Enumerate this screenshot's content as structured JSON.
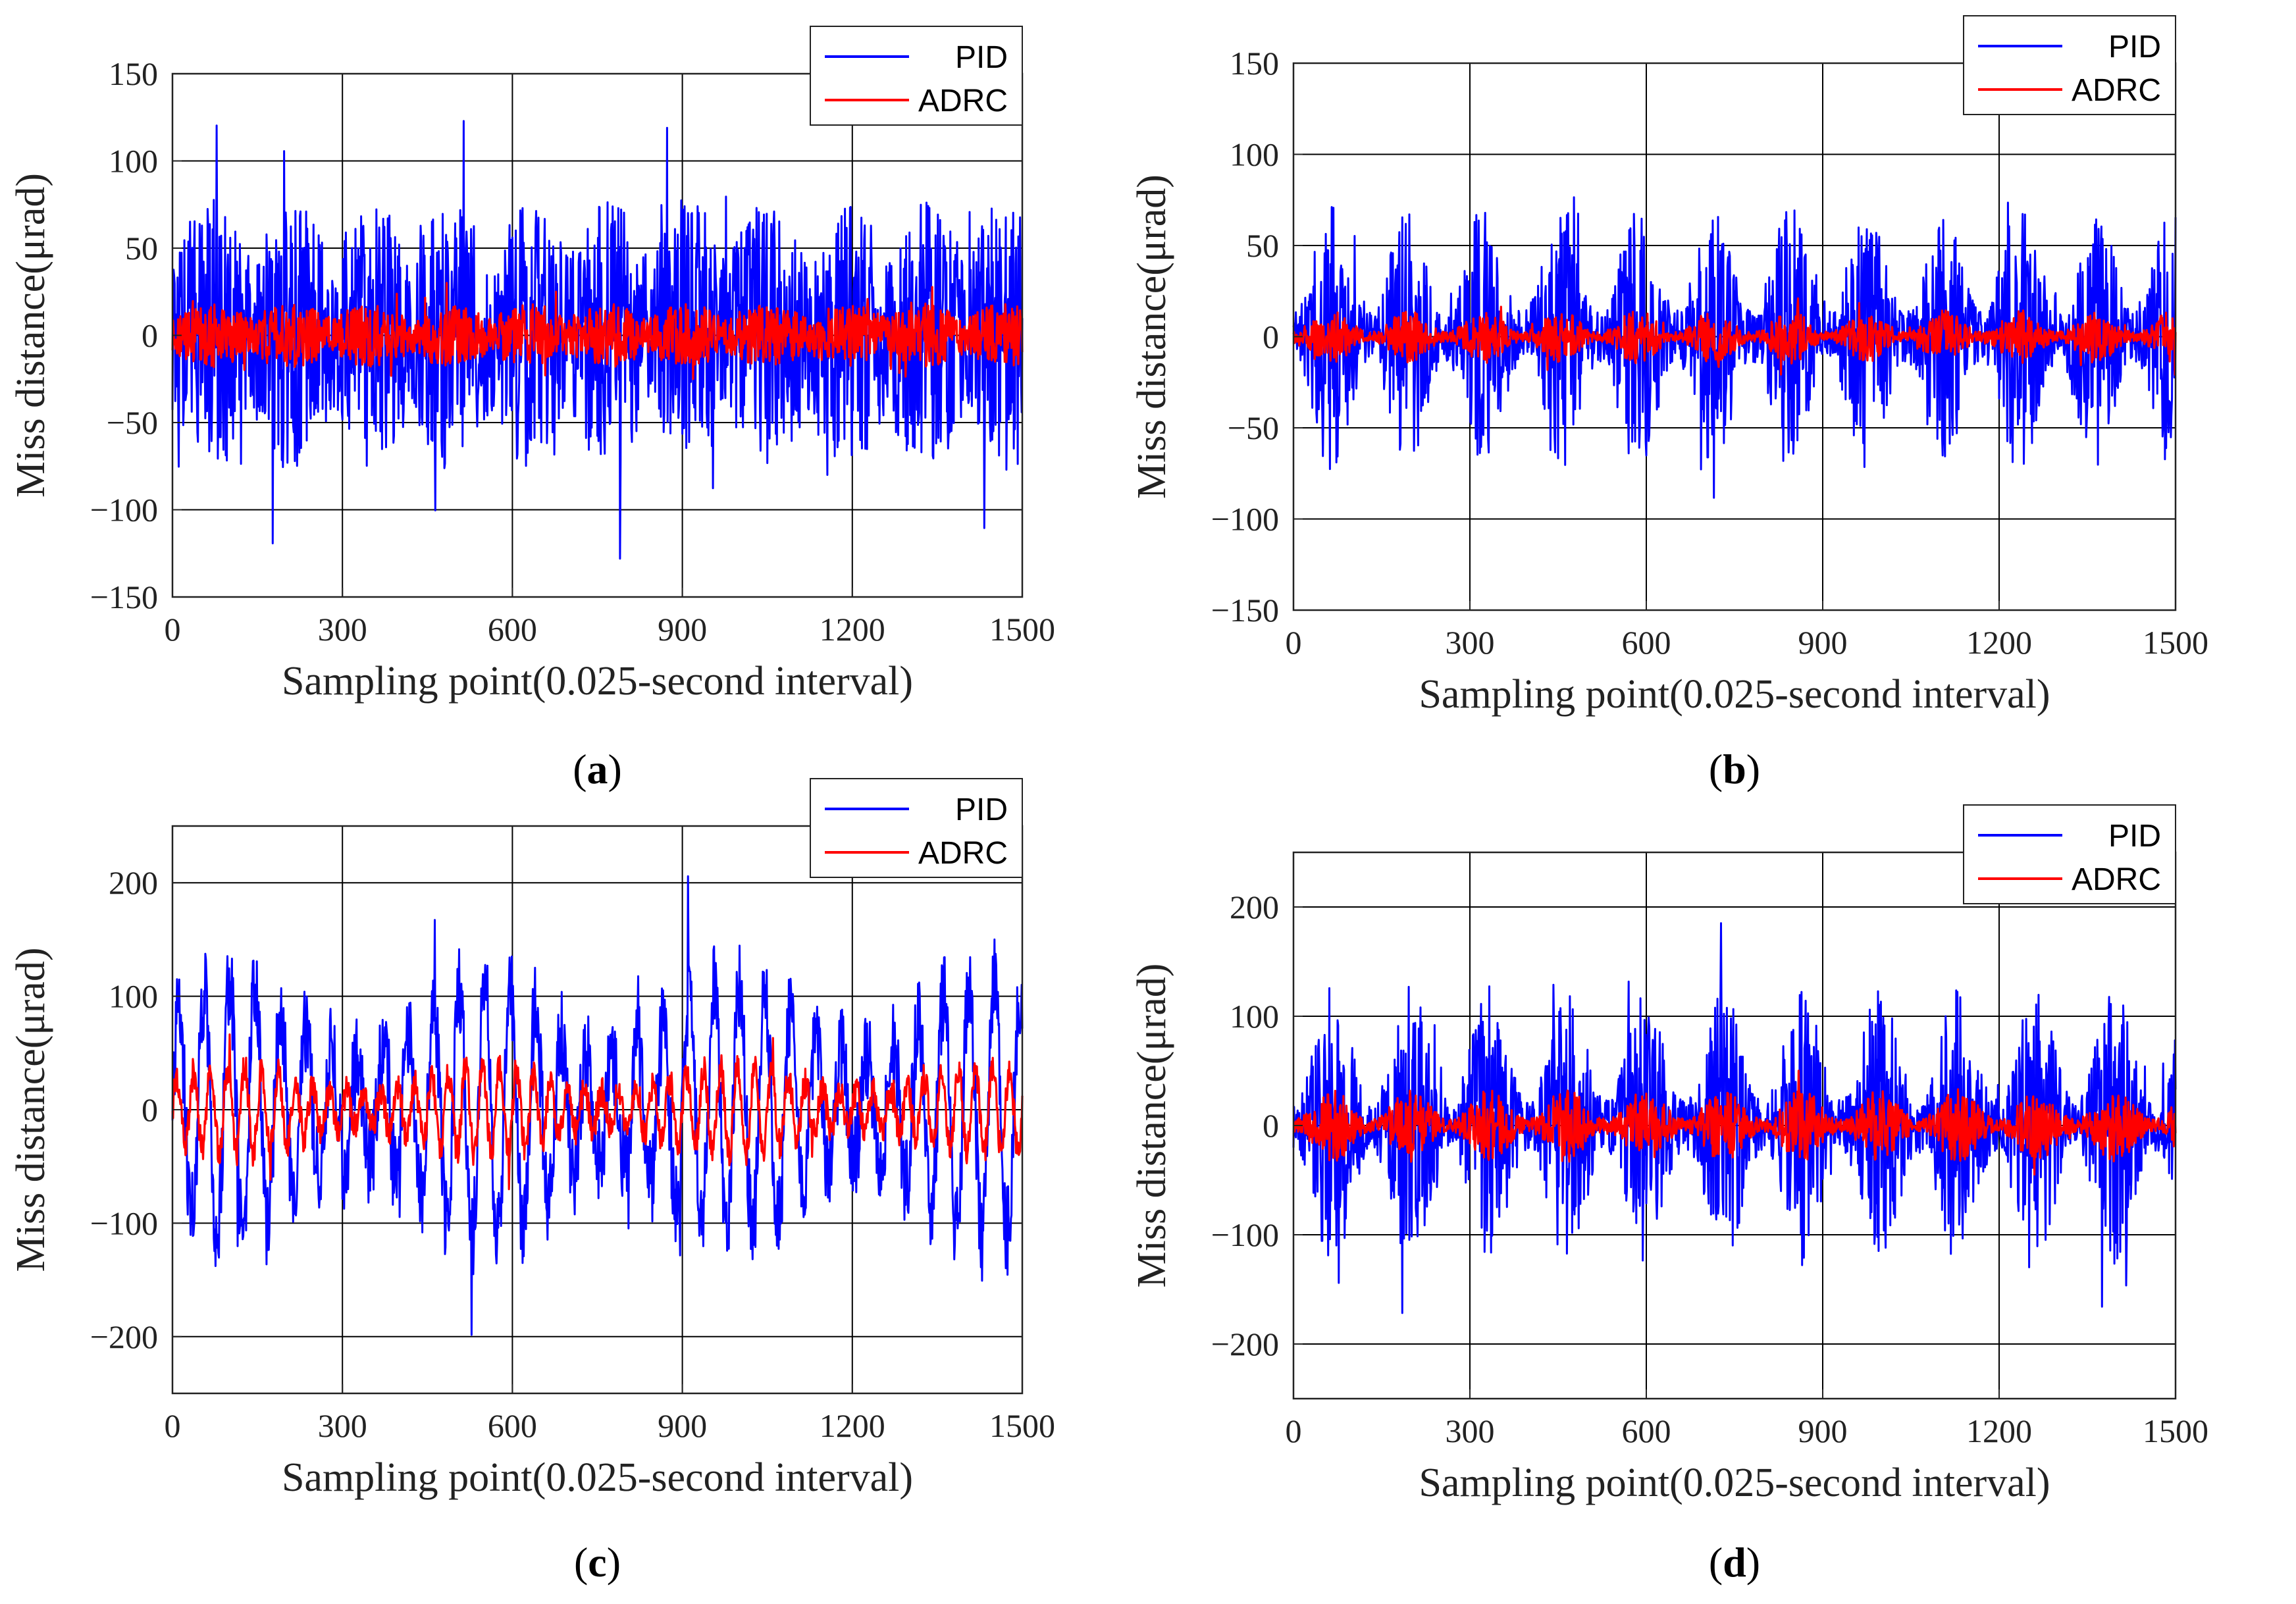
{
  "chart_data": [
    {
      "type": "line",
      "panel": "a",
      "caption_label": "a",
      "xlabel": "Sampling point(0.025-second interval)",
      "ylabel": "Miss distance(μrad)",
      "xlim": [
        0,
        1500
      ],
      "ylim": [
        -150,
        150
      ],
      "xticks": [
        0,
        300,
        600,
        900,
        1200,
        1500
      ],
      "yticks": [
        -150,
        -100,
        -50,
        0,
        50,
        100,
        150
      ],
      "xtick_labels": [
        "0",
        "300",
        "600",
        "900",
        "1200",
        "1500"
      ],
      "ytick_labels": [
        "−150",
        "−100",
        "−50",
        "0",
        "50",
        "100",
        "150"
      ],
      "grid": true,
      "legend_position": "top-right",
      "series": [
        {
          "name": "PID",
          "color": "#0000ff",
          "pattern": "noise",
          "amplitude": 60,
          "peak": 128,
          "burst_period": 140,
          "seed": 11
        },
        {
          "name": "ADRC",
          "color": "#ff0000",
          "pattern": "noise",
          "amplitude": 14,
          "peak": 30,
          "burst_period": 140,
          "seed": 12
        }
      ]
    },
    {
      "type": "line",
      "panel": "b",
      "caption_label": "b",
      "xlabel": "Sampling point(0.025-second interval)",
      "ylabel": "Miss distance(μrad)",
      "xlim": [
        0,
        1500
      ],
      "ylim": [
        -150,
        150
      ],
      "xticks": [
        0,
        300,
        600,
        900,
        1200,
        1500
      ],
      "yticks": [
        -150,
        -100,
        -50,
        0,
        50,
        100,
        150
      ],
      "xtick_labels": [
        "0",
        "300",
        "600",
        "900",
        "1200",
        "1500"
      ],
      "ytick_labels": [
        "−150",
        "−100",
        "−50",
        "0",
        "50",
        "100",
        "150"
      ],
      "grid": true,
      "legend_position": "top-right",
      "series": [
        {
          "name": "PID",
          "color": "#0000ff",
          "pattern": "bursts",
          "amplitude": 55,
          "peak": 108,
          "burst_period": 130,
          "seed": 21
        },
        {
          "name": "ADRC",
          "color": "#ff0000",
          "pattern": "bursts",
          "amplitude": 11,
          "peak": 25,
          "burst_period": 130,
          "seed": 22
        }
      ]
    },
    {
      "type": "line",
      "panel": "c",
      "caption_label": "c",
      "xlabel": "Sampling point(0.025-second interval)",
      "ylabel": "Miss distance(μrad)",
      "xlim": [
        0,
        1500
      ],
      "ylim": [
        -250,
        250
      ],
      "xticks": [
        0,
        300,
        600,
        900,
        1200,
        1500
      ],
      "yticks": [
        -200,
        -100,
        0,
        100,
        200
      ],
      "xtick_labels": [
        "0",
        "300",
        "600",
        "900",
        "1200",
        "1500"
      ],
      "ytick_labels": [
        "−200",
        "−100",
        "0",
        "100",
        "200"
      ],
      "grid": true,
      "legend_position": "top-right",
      "series": [
        {
          "name": "PID",
          "color": "#0000ff",
          "pattern": "oscillation",
          "amplitude": 115,
          "peak": 222,
          "burst_period": 45,
          "seed": 31
        },
        {
          "name": "ADRC",
          "color": "#ff0000",
          "pattern": "oscillation",
          "amplitude": 38,
          "peak": 70,
          "burst_period": 30,
          "seed": 32
        }
      ]
    },
    {
      "type": "line",
      "panel": "d",
      "caption_label": "d",
      "xlabel": "Sampling point(0.025-second interval)",
      "ylabel": "Miss distance(μrad)",
      "xlim": [
        0,
        1500
      ],
      "ylim": [
        -250,
        250
      ],
      "xticks": [
        0,
        300,
        600,
        900,
        1200,
        1500
      ],
      "yticks": [
        -200,
        -100,
        0,
        100,
        200
      ],
      "xtick_labels": [
        "0",
        "300",
        "600",
        "900",
        "1200",
        "1500"
      ],
      "ytick_labels": [
        "−200",
        "−100",
        "0",
        "100",
        "200"
      ],
      "grid": true,
      "legend_position": "top-right",
      "series": [
        {
          "name": "PID",
          "color": "#0000ff",
          "pattern": "bursts",
          "amplitude": 95,
          "peak": 218,
          "burst_period": 133,
          "seed": 41
        },
        {
          "name": "ADRC",
          "color": "#ff0000",
          "pattern": "bursts",
          "amplitude": 25,
          "peak": 60,
          "burst_period": 133,
          "seed": 42
        }
      ]
    }
  ]
}
